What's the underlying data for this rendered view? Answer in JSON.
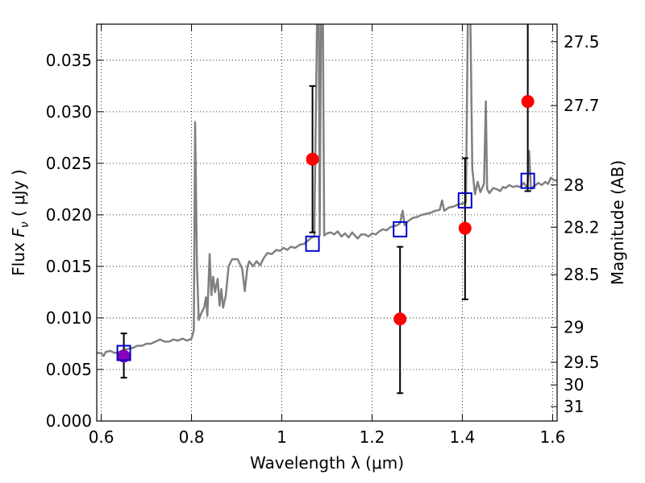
{
  "chart_data": {
    "type": "scatter",
    "xlabel": "Wavelength  λ (μm)",
    "ylabel_parts": [
      "Flux  ",
      "F",
      "ν",
      "  ( μJy )"
    ],
    "ylabel_right": "Magnitude (AB)",
    "xlim": [
      0.59,
      1.61
    ],
    "ylim": [
      0.0,
      0.0385
    ],
    "grid": true,
    "x_ticks": [
      0.6,
      0.8,
      1.0,
      1.2,
      1.4,
      1.6
    ],
    "x_tick_labels": [
      "0.6",
      "0.8",
      "1",
      "1.2",
      "1.4",
      "1.6"
    ],
    "y_ticks": [
      0.0,
      0.005,
      0.01,
      0.015,
      0.02,
      0.025,
      0.03,
      0.035
    ],
    "y_tick_labels": [
      "0.000",
      "0.005",
      "0.010",
      "0.015",
      "0.020",
      "0.025",
      "0.030",
      "0.035"
    ],
    "right_ticks": [
      {
        "flux": 0.0368,
        "label": "27.5"
      },
      {
        "flux": 0.0306,
        "label": "27.7"
      },
      {
        "flux": 0.0229,
        "label": "28"
      },
      {
        "flux": 0.0188,
        "label": "28.2"
      },
      {
        "flux": 0.0142,
        "label": "28.5"
      },
      {
        "flux": 0.0091,
        "label": "29"
      },
      {
        "flux": 0.0057,
        "label": "29.5"
      },
      {
        "flux": 0.0035,
        "label": "30"
      },
      {
        "flux": 0.0014,
        "label": "31"
      }
    ],
    "series": [
      {
        "kind": "line",
        "color": "#808080",
        "points": [
          [
            0.59,
            0.0066
          ],
          [
            0.6,
            0.0066
          ],
          [
            0.605,
            0.0063
          ],
          [
            0.61,
            0.0067
          ],
          [
            0.62,
            0.0068
          ],
          [
            0.63,
            0.0066
          ],
          [
            0.64,
            0.0067
          ],
          [
            0.65,
            0.0069
          ],
          [
            0.66,
            0.007
          ],
          [
            0.67,
            0.0071
          ],
          [
            0.68,
            0.0073
          ],
          [
            0.69,
            0.0073
          ],
          [
            0.7,
            0.0075
          ],
          [
            0.71,
            0.0075
          ],
          [
            0.72,
            0.0077
          ],
          [
            0.73,
            0.0079
          ],
          [
            0.74,
            0.0077
          ],
          [
            0.75,
            0.0077
          ],
          [
            0.76,
            0.0079
          ],
          [
            0.77,
            0.0078
          ],
          [
            0.78,
            0.008
          ],
          [
            0.79,
            0.0078
          ],
          [
            0.8,
            0.008
          ],
          [
            0.805,
            0.0088
          ],
          [
            0.808,
            0.029
          ],
          [
            0.812,
            0.015
          ],
          [
            0.816,
            0.0098
          ],
          [
            0.822,
            0.0105
          ],
          [
            0.828,
            0.011
          ],
          [
            0.832,
            0.012
          ],
          [
            0.835,
            0.0102
          ],
          [
            0.84,
            0.0162
          ],
          [
            0.844,
            0.0122
          ],
          [
            0.848,
            0.014
          ],
          [
            0.852,
            0.0125
          ],
          [
            0.858,
            0.0138
          ],
          [
            0.862,
            0.0112
          ],
          [
            0.866,
            0.0128
          ],
          [
            0.87,
            0.011
          ],
          [
            0.876,
            0.0122
          ],
          [
            0.882,
            0.015
          ],
          [
            0.89,
            0.0157
          ],
          [
            0.902,
            0.0157
          ],
          [
            0.912,
            0.0148
          ],
          [
            0.918,
            0.0126
          ],
          [
            0.924,
            0.015
          ],
          [
            0.928,
            0.0155
          ],
          [
            0.936,
            0.015
          ],
          [
            0.944,
            0.0155
          ],
          [
            0.952,
            0.0151
          ],
          [
            0.96,
            0.0158
          ],
          [
            0.968,
            0.0163
          ],
          [
            0.978,
            0.0162
          ],
          [
            0.988,
            0.0166
          ],
          [
            0.996,
            0.0165
          ],
          [
            1.004,
            0.0168
          ],
          [
            1.012,
            0.0166
          ],
          [
            1.02,
            0.0169
          ],
          [
            1.03,
            0.0168
          ],
          [
            1.04,
            0.0171
          ],
          [
            1.05,
            0.0172
          ],
          [
            1.058,
            0.0175
          ],
          [
            1.066,
            0.0178
          ],
          [
            1.072,
            0.0179
          ],
          [
            1.078,
            0.0386
          ],
          [
            1.082,
            0.0386
          ],
          [
            1.084,
            0.018
          ],
          [
            1.087,
            0.0386
          ],
          [
            1.091,
            0.0386
          ],
          [
            1.094,
            0.018
          ],
          [
            1.1,
            0.0182
          ],
          [
            1.108,
            0.0183
          ],
          [
            1.116,
            0.0181
          ],
          [
            1.124,
            0.0184
          ],
          [
            1.132,
            0.0179
          ],
          [
            1.14,
            0.0182
          ],
          [
            1.148,
            0.0178
          ],
          [
            1.156,
            0.0183
          ],
          [
            1.162,
            0.018
          ],
          [
            1.168,
            0.0177
          ],
          [
            1.176,
            0.0181
          ],
          [
            1.184,
            0.0181
          ],
          [
            1.192,
            0.0179
          ],
          [
            1.2,
            0.0182
          ],
          [
            1.208,
            0.0181
          ],
          [
            1.216,
            0.0184
          ],
          [
            1.224,
            0.0186
          ],
          [
            1.232,
            0.0185
          ],
          [
            1.24,
            0.0188
          ],
          [
            1.248,
            0.0189
          ],
          [
            1.256,
            0.019
          ],
          [
            1.262,
            0.0192
          ],
          [
            1.268,
            0.0204
          ],
          [
            1.272,
            0.019
          ],
          [
            1.28,
            0.0194
          ],
          [
            1.29,
            0.0197
          ],
          [
            1.3,
            0.0198
          ],
          [
            1.31,
            0.02
          ],
          [
            1.32,
            0.0201
          ],
          [
            1.33,
            0.0202
          ],
          [
            1.34,
            0.0204
          ],
          [
            1.35,
            0.0205
          ],
          [
            1.355,
            0.0214
          ],
          [
            1.36,
            0.0204
          ],
          [
            1.37,
            0.0207
          ],
          [
            1.38,
            0.0208
          ],
          [
            1.39,
            0.021
          ],
          [
            1.4,
            0.0211
          ],
          [
            1.408,
            0.0212
          ],
          [
            1.412,
            0.0386
          ],
          [
            1.418,
            0.0386
          ],
          [
            1.422,
            0.0245
          ],
          [
            1.428,
            0.022
          ],
          [
            1.434,
            0.0232
          ],
          [
            1.44,
            0.0222
          ],
          [
            1.448,
            0.023
          ],
          [
            1.452,
            0.031
          ],
          [
            1.455,
            0.0225
          ],
          [
            1.46,
            0.0221
          ],
          [
            1.468,
            0.0226
          ],
          [
            1.476,
            0.0225
          ],
          [
            1.484,
            0.0223
          ],
          [
            1.49,
            0.0227
          ],
          [
            1.496,
            0.0226
          ],
          [
            1.504,
            0.0229
          ],
          [
            1.512,
            0.0227
          ],
          [
            1.52,
            0.0228
          ],
          [
            1.528,
            0.0227
          ],
          [
            1.536,
            0.0231
          ],
          [
            1.544,
            0.0226
          ],
          [
            1.548,
            0.0262
          ],
          [
            1.552,
            0.0225
          ],
          [
            1.56,
            0.0228
          ],
          [
            1.568,
            0.0231
          ],
          [
            1.576,
            0.0229
          ],
          [
            1.584,
            0.0232
          ],
          [
            1.59,
            0.023
          ],
          [
            1.596,
            0.0236
          ],
          [
            1.602,
            0.0234
          ],
          [
            1.61,
            0.0233
          ]
        ]
      },
      {
        "kind": "points",
        "marker": "circle",
        "color": "#ff0000",
        "points": [
          [
            1.068,
            0.0254
          ],
          [
            1.262,
            0.0099
          ],
          [
            1.406,
            0.0187
          ],
          [
            1.545,
            0.031
          ]
        ]
      },
      {
        "kind": "points",
        "marker": "circle",
        "color": "#8a00b8",
        "points": [
          [
            0.65,
            0.0063
          ]
        ]
      },
      {
        "kind": "points",
        "marker": "open-square",
        "color": "#0000cc",
        "points": [
          [
            0.65,
            0.0066
          ],
          [
            1.068,
            0.0172
          ],
          [
            1.262,
            0.0186
          ],
          [
            1.406,
            0.0214
          ],
          [
            1.545,
            0.0233
          ]
        ]
      }
    ],
    "errorbars": [
      {
        "x": 0.65,
        "low": 0.0042,
        "high": 0.0085
      },
      {
        "x": 1.068,
        "low": 0.0183,
        "high": 0.0325
      },
      {
        "x": 1.262,
        "low": 0.0027,
        "high": 0.0169
      },
      {
        "x": 1.406,
        "low": 0.0118,
        "high": 0.0255
      },
      {
        "x": 1.545,
        "low": 0.0223,
        "high": 0.0386
      }
    ]
  }
}
